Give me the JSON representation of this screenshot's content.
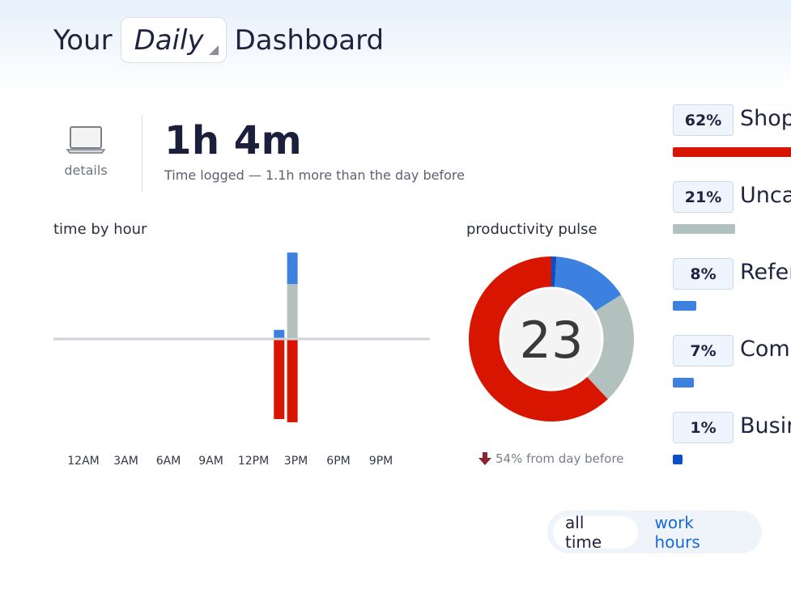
{
  "header": {
    "prefix": "Your",
    "period": "Daily",
    "suffix": "Dashboard"
  },
  "summary": {
    "device_icon": "laptop-icon",
    "device_label": "details",
    "total_time": "1h 4m",
    "subtitle": "Time logged — 1.1h more than the day before"
  },
  "time_by_hour": {
    "title": "time by hour",
    "chart_data": {
      "type": "bar",
      "categories": [
        "12AM",
        "3AM",
        "6AM",
        "9AM",
        "12PM",
        "3PM",
        "6PM",
        "9PM"
      ],
      "colors": {
        "productive": "#d81600",
        "neutral": "#b2c1bd",
        "unproductive": "#3d81e0"
      },
      "bars": [
        {
          "hour": 14,
          "above": [
            {
              "kind": "unproductive",
              "minutes": 5
            }
          ],
          "below": [
            {
              "kind": "productive",
              "minutes": 50
            }
          ]
        },
        {
          "hour": 15,
          "above": [
            {
              "kind": "neutral",
              "minutes": 34
            },
            {
              "kind": "unproductive",
              "minutes": 20
            }
          ],
          "below": [
            {
              "kind": "productive",
              "minutes": 52
            }
          ]
        }
      ]
    }
  },
  "pulse": {
    "title": "productivity pulse",
    "score": "23",
    "change_icon": "arrow-down-icon",
    "change": "54% from day before",
    "chart_data": {
      "type": "pie",
      "slices": [
        {
          "value": 1,
          "color": "#0b4fc4"
        },
        {
          "value": 15,
          "color": "#3d81e0"
        },
        {
          "value": 22,
          "color": "#b2c1bd"
        },
        {
          "value": 62,
          "color": "#d81600"
        }
      ]
    }
  },
  "categories": [
    {
      "pct": "62%",
      "name": "Shopping",
      "fraction": 0.62,
      "color": "#d81600"
    },
    {
      "pct": "21%",
      "name": "Uncategorized",
      "fraction": 0.21,
      "color": "#b2c1bd"
    },
    {
      "pct": "8%",
      "name": "Reference & Learning",
      "fraction": 0.08,
      "color": "#3d81e0"
    },
    {
      "pct": "7%",
      "name": "Communication",
      "fraction": 0.07,
      "color": "#3d81e0"
    },
    {
      "pct": "1%",
      "name": "Business",
      "fraction": 0.01,
      "color": "#0b4fc4"
    }
  ],
  "toggle": {
    "active": "all time",
    "inactive": "work hours"
  }
}
